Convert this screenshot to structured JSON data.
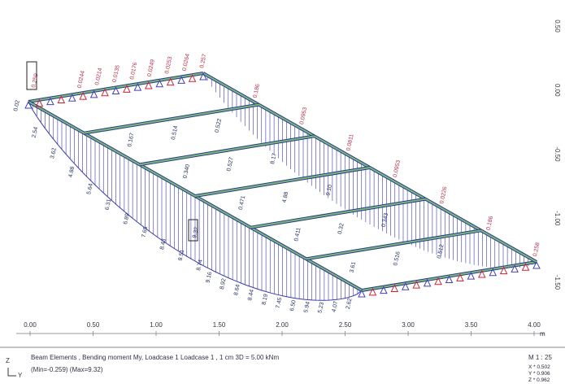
{
  "scale_x": {
    "ticks": [
      "0.00",
      "0.50",
      "1.00",
      "1.50",
      "2.00",
      "2.50",
      "3.00",
      "3.50",
      "4.00"
    ],
    "unit": "m"
  },
  "scale_y": {
    "ticks": [
      "0.50",
      "0.00",
      "-0.50",
      "-1.00",
      "-1.50"
    ]
  },
  "diagram": {
    "boxed": [
      "0.259",
      "9.32"
    ],
    "left_edge": [
      "0.02",
      "2.54",
      "3.62",
      "4.88",
      "5.64",
      "6.31",
      "6.89",
      "7.65",
      "8.43",
      "8.51",
      "8.74"
    ],
    "bottom_edge": [
      "9.16",
      "8.92",
      "8.64",
      "8.44",
      "8.19",
      "7.45",
      "6.50",
      "5.94",
      "5.23",
      "4.07",
      "2.62"
    ],
    "top_edge": [
      "0.0244",
      "0.0214",
      "0.0135",
      "0.0176",
      "0.0249",
      "0.0253",
      "0.0264",
      "0.257"
    ],
    "right_edge": [
      "0.186",
      "0.0953",
      "0.0811",
      "0.0953",
      "0.0226",
      "0.186",
      "0.258"
    ],
    "inner": [
      "0.167",
      "0.340",
      "0.471",
      "0.411",
      "3.61",
      "0.514",
      "0.527",
      "4.88",
      "0.32",
      "0.516",
      "0.522",
      "8.17",
      "9.10",
      "0.343",
      "0.512"
    ]
  },
  "footer": {
    "axes": [
      "Z",
      "Y"
    ],
    "line1": "Beam Elements , Bending moment My, Loadcase 1 Loadcase 1  , 1 cm 3D = 5.00 kNm",
    "line2": "(Min=-0.259) (Max=9.32)",
    "scale": "M 1 : 25",
    "factors": [
      "X * 0.502",
      "Y * 0.906",
      "Z * 0.962"
    ]
  }
}
